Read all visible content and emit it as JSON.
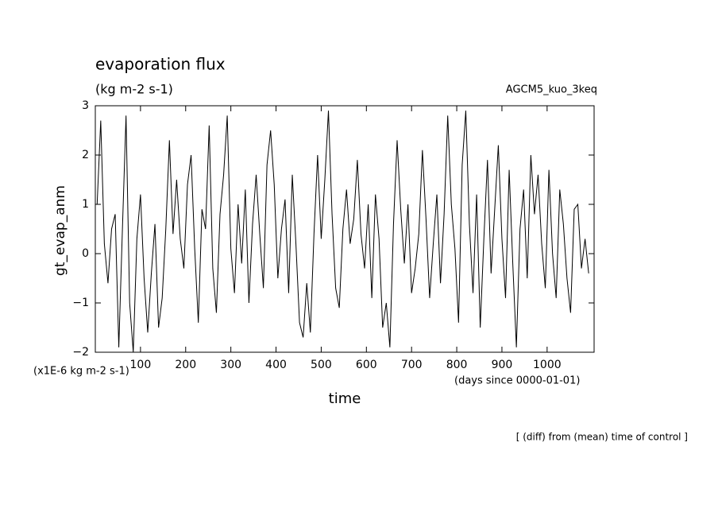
{
  "chart_data": {
    "type": "line",
    "title": "evaporation flux",
    "subtitle": "(kg m-2 s-1)",
    "source_label": "AGCM5_kuo_3keq",
    "y_label": "gt_evap_anm",
    "x_label": "time",
    "y_unit": "(x1E-6 kg m-2 s-1)",
    "x_unit": "(days since 0000-01-01)",
    "footer": "[ (diff) from (mean) time of control ]",
    "color": "#000000",
    "xlim": [
      0,
      1104
    ],
    "ylim": [
      -2,
      3
    ],
    "xticks": [
      100,
      200,
      300,
      400,
      500,
      600,
      700,
      800,
      900,
      1000
    ],
    "yticks": [
      {
        "value": -2,
        "label": "−2"
      },
      {
        "value": -1,
        "label": "−1"
      },
      0,
      1,
      2,
      3
    ],
    "x": [
      4,
      12,
      20,
      28,
      36,
      44,
      52,
      60,
      68,
      76,
      84,
      92,
      100,
      108,
      116,
      124,
      132,
      140,
      148,
      156,
      164,
      172,
      180,
      188,
      196,
      204,
      212,
      220,
      228,
      236,
      244,
      252,
      260,
      268,
      276,
      284,
      292,
      300,
      308,
      316,
      324,
      332,
      340,
      348,
      356,
      364,
      372,
      380,
      388,
      396,
      404,
      412,
      420,
      428,
      436,
      444,
      452,
      460,
      468,
      476,
      484,
      492,
      500,
      508,
      516,
      524,
      532,
      540,
      548,
      556,
      564,
      572,
      580,
      588,
      596,
      604,
      612,
      620,
      628,
      636,
      644,
      652,
      660,
      668,
      676,
      684,
      692,
      700,
      708,
      716,
      724,
      732,
      740,
      748,
      756,
      764,
      772,
      780,
      788,
      796,
      804,
      812,
      820,
      828,
      836,
      844,
      852,
      860,
      868,
      876,
      884,
      892,
      900,
      908,
      916,
      924,
      932,
      940,
      948,
      956,
      964,
      972,
      980,
      988,
      996,
      1004,
      1012,
      1020,
      1028,
      1036,
      1044,
      1052,
      1060,
      1068,
      1076,
      1084,
      1092
    ],
    "values": [
      1.0,
      2.7,
      0.2,
      -0.6,
      0.5,
      0.8,
      -1.9,
      0.5,
      2.8,
      -1.0,
      -2.0,
      0.3,
      1.2,
      -0.5,
      -1.6,
      -0.4,
      0.6,
      -1.5,
      -0.9,
      0.5,
      2.3,
      0.4,
      1.5,
      0.3,
      -0.3,
      1.4,
      2.0,
      0.1,
      -1.4,
      0.9,
      0.5,
      2.6,
      -0.3,
      -1.2,
      0.8,
      1.6,
      2.8,
      0.1,
      -0.8,
      1.0,
      -0.2,
      1.3,
      -1.0,
      0.6,
      1.6,
      0.4,
      -0.7,
      1.8,
      2.5,
      1.4,
      -0.5,
      0.5,
      1.1,
      -0.8,
      1.6,
      0.2,
      -1.4,
      -1.7,
      -0.6,
      -1.6,
      0.4,
      2.0,
      0.3,
      1.5,
      2.9,
      0.8,
      -0.7,
      -1.1,
      0.5,
      1.3,
      0.2,
      0.7,
      1.9,
      0.4,
      -0.3,
      1.0,
      -0.9,
      1.2,
      0.3,
      -1.5,
      -1.0,
      -1.9,
      0.6,
      2.3,
      0.9,
      -0.2,
      1.0,
      -0.8,
      -0.3,
      0.4,
      2.1,
      0.7,
      -0.9,
      0.2,
      1.2,
      -0.6,
      0.8,
      2.8,
      1.0,
      0.1,
      -1.4,
      1.8,
      2.9,
      0.6,
      -0.8,
      1.2,
      -1.5,
      0.3,
      1.9,
      -0.4,
      0.9,
      2.2,
      0.3,
      -0.9,
      1.7,
      -0.2,
      -1.9,
      0.5,
      1.3,
      -0.5,
      2.0,
      0.8,
      1.6,
      0.2,
      -0.7,
      1.7,
      0.0,
      -0.9,
      1.3,
      0.6,
      -0.5,
      -1.2,
      0.9,
      1.0,
      -0.3,
      0.3,
      -0.4
    ]
  }
}
